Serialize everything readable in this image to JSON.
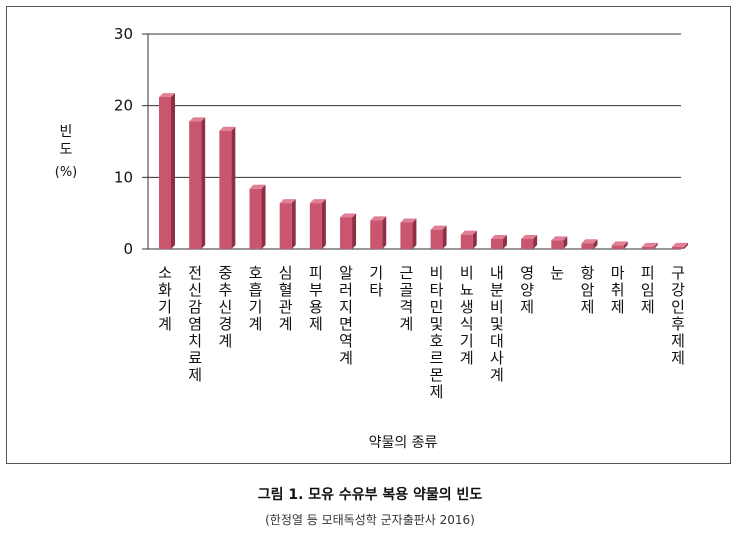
{
  "chart_data": {
    "type": "bar",
    "ylabel": "빈도(%)",
    "xlabel": "약물의 종류",
    "ylim": [
      0,
      30
    ],
    "yticks": [
      "0",
      "10",
      "20",
      "30"
    ],
    "grid": true,
    "bar_color": "#c9556f",
    "categories": [
      "소화기계",
      "전신감염치료제",
      "중추신경계",
      "호흡기계",
      "심혈관계",
      "피부용제",
      "알러지면역계",
      "기타",
      "근골격계",
      "비타민및호르몬제",
      "비뇨생식기계",
      "내분비및대사계",
      "영양제",
      "눈",
      "항암제",
      "마취제",
      "피임제",
      "구강인후제제"
    ],
    "values": [
      21.2,
      17.8,
      16.5,
      8.4,
      6.4,
      6.4,
      4.4,
      4.0,
      3.7,
      2.7,
      2.0,
      1.4,
      1.4,
      1.2,
      0.8,
      0.5,
      0.3,
      0.3
    ]
  },
  "caption": "그림 1. 모유 수유부 복용 약물의 빈도",
  "source": "(한정열 등 모태독성학 군자출판사 2016)"
}
